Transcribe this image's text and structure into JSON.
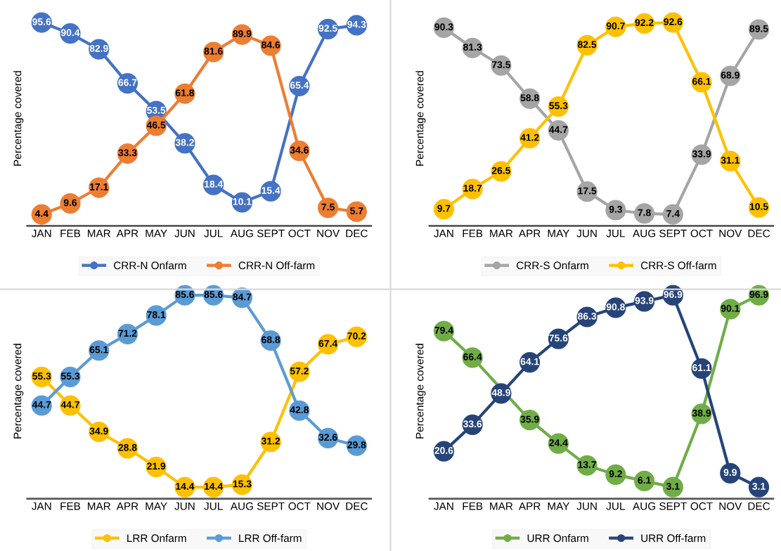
{
  "chart_data": [
    {
      "type": "line",
      "ylabel": "Percentage covered",
      "categories": [
        "JAN",
        "FEB",
        "MAR",
        "APR",
        "MAY",
        "JUN",
        "JUL",
        "AUG",
        "SEPT",
        "OCT",
        "NOV",
        "DEC"
      ],
      "marker": "circle",
      "line_style": "solid",
      "grid": false,
      "legend": "bottom",
      "data_labels": true,
      "tick_labels": "x",
      "series": [
        {
          "name": "CRR-N Onfarm",
          "color": "#4472c4",
          "values": [
            95.6,
            90.4,
            82.9,
            66.7,
            53.5,
            38.2,
            18.4,
            10.1,
            15.4,
            65.4,
            92.5,
            94.3
          ]
        },
        {
          "name": "CRR-N Off-farm",
          "color": "#ed7d31",
          "values": [
            4.4,
            9.6,
            17.1,
            33.3,
            46.5,
            61.8,
            81.6,
            89.9,
            84.6,
            34.6,
            7.5,
            5.7
          ]
        }
      ]
    },
    {
      "type": "line",
      "ylabel": "Percentage covered",
      "categories": [
        "JAN",
        "FEB",
        "MAR",
        "APR",
        "MAY",
        "JUN",
        "JUL",
        "AUG",
        "SEPT",
        "OCT",
        "NOV",
        "DEC"
      ],
      "marker": "circle",
      "line_style": "solid",
      "grid": false,
      "legend": "bottom",
      "data_labels": true,
      "tick_labels": "x",
      "series": [
        {
          "name": "CRR-S Onfarm",
          "color": "#a5a5a5",
          "values": [
            90.3,
            81.3,
            73.5,
            58.8,
            44.7,
            17.5,
            9.3,
            7.8,
            7.4,
            33.9,
            68.9,
            89.5
          ]
        },
        {
          "name": "CRR-S Off-farm",
          "color": "#ffc000",
          "values": [
            9.7,
            18.7,
            26.5,
            41.2,
            55.3,
            82.5,
            90.7,
            92.2,
            92.6,
            66.1,
            31.1,
            10.5
          ]
        }
      ]
    },
    {
      "type": "line",
      "ylabel": "Percentage covered",
      "categories": [
        "JAN",
        "FEB",
        "MAR",
        "APR",
        "MAY",
        "JUN",
        "JUL",
        "AUG",
        "SEPT",
        "OCT",
        "NOV",
        "DEC"
      ],
      "marker": "circle",
      "line_style": "solid",
      "grid": false,
      "legend": "bottom",
      "data_labels": true,
      "tick_labels": "x",
      "series": [
        {
          "name": "LRR Onfarm",
          "color": "#ffc000",
          "values": [
            55.3,
            44.7,
            34.9,
            28.8,
            21.9,
            14.4,
            14.4,
            15.3,
            31.2,
            57.2,
            67.4,
            70.2
          ]
        },
        {
          "name": "LRR Off-farm",
          "color": "#5b9bd5",
          "values": [
            44.7,
            55.3,
            65.1,
            71.2,
            78.1,
            85.6,
            85.6,
            84.7,
            68.8,
            42.8,
            32.6,
            29.8
          ]
        }
      ]
    },
    {
      "type": "line",
      "ylabel": "Percentage covered",
      "categories": [
        "JAN",
        "FEB",
        "MAR",
        "APR",
        "MAY",
        "JUN",
        "JUL",
        "AUG",
        "SEPT",
        "OCT",
        "NOV",
        "DEC"
      ],
      "marker": "circle",
      "line_style": "solid",
      "grid": false,
      "legend": "bottom",
      "data_labels": true,
      "tick_labels": "x",
      "series": [
        {
          "name": "URR Onfarm",
          "color": "#70ad47",
          "values": [
            79.4,
            66.4,
            null,
            35.9,
            24.4,
            13.7,
            9.2,
            6.1,
            3.1,
            38.9,
            90.1,
            96.9
          ]
        },
        {
          "name": "URR Off-farm",
          "color": "#264478",
          "values": [
            20.6,
            33.6,
            48.9,
            64.1,
            75.6,
            86.3,
            90.8,
            93.9,
            96.9,
            61.1,
            9.9,
            3.1
          ]
        }
      ]
    }
  ]
}
